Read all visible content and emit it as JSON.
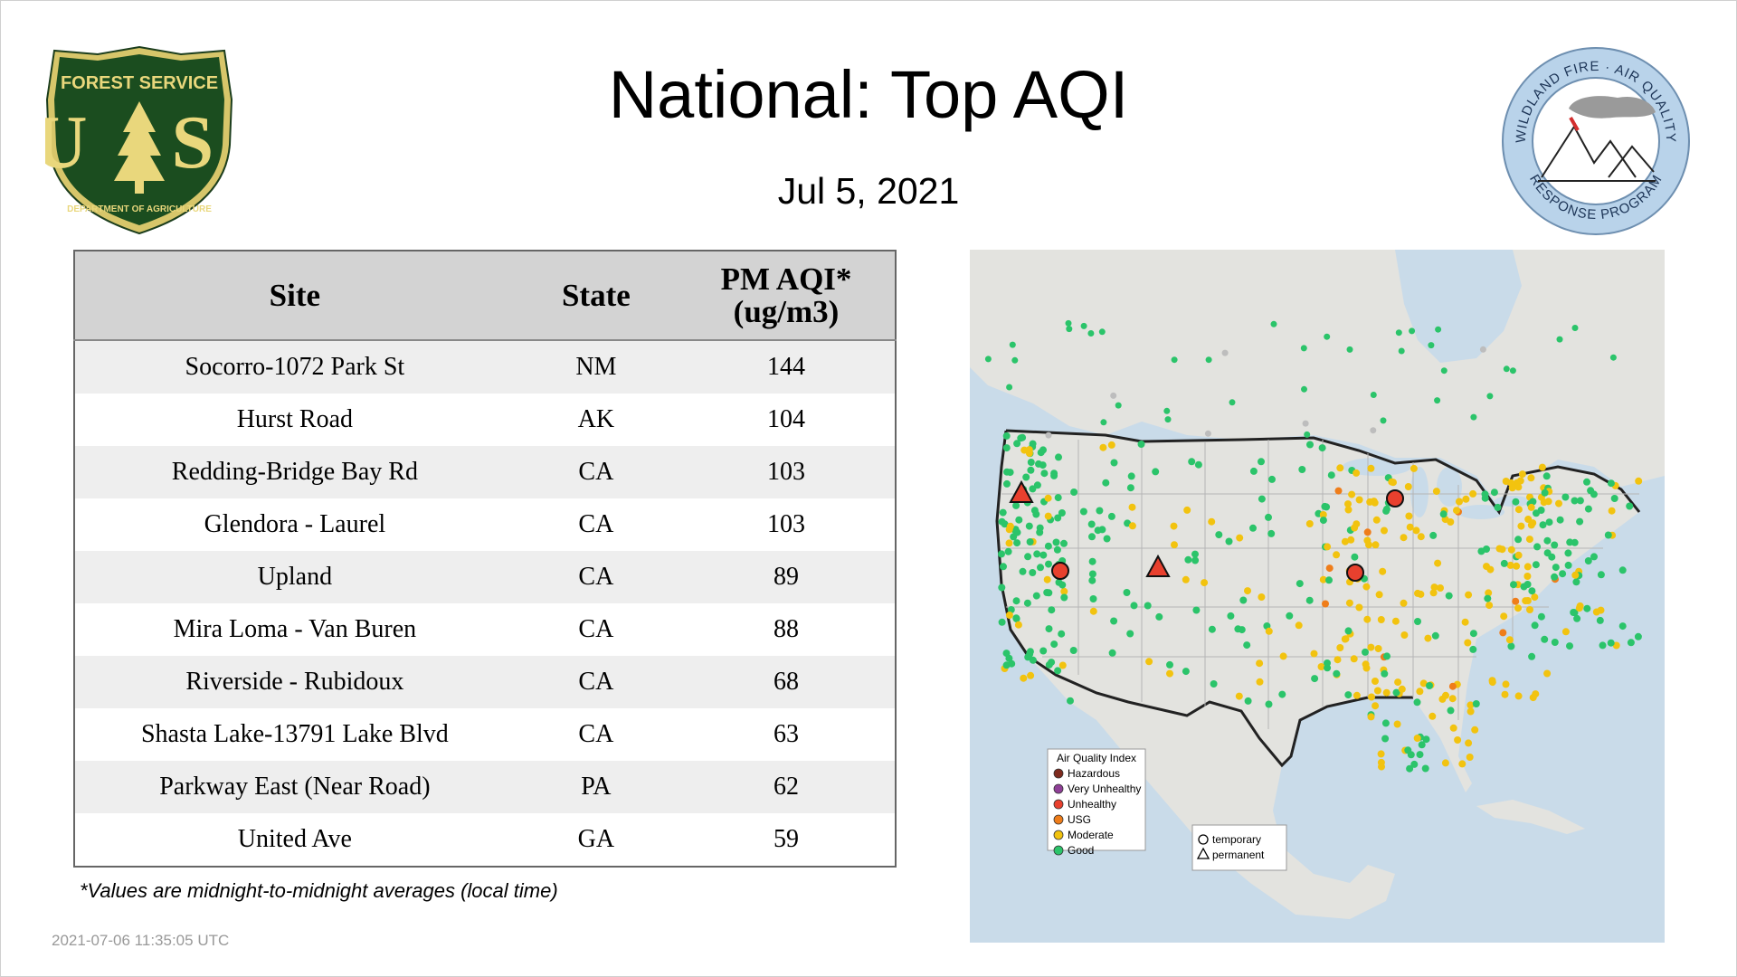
{
  "header": {
    "title": "National: Top AQI",
    "date": "Jul  5, 2021"
  },
  "logos": {
    "left": {
      "top_text": "FOREST SERVICE",
      "letters": "U S",
      "bottom_text": "DEPARTMENT OF AGRICULTURE"
    },
    "right": {
      "top_text": "WILDLAND FIRE · AIR QUALITY",
      "bottom_text": "RESPONSE PROGRAM"
    }
  },
  "table": {
    "headers": {
      "site": "Site",
      "state": "State",
      "aqi_line1": "PM AQI*",
      "aqi_line2": "(ug/m3)"
    },
    "rows": [
      {
        "site": "Socorro-1072 Park St",
        "state": "NM",
        "aqi": "144"
      },
      {
        "site": "Hurst Road",
        "state": "AK",
        "aqi": "104"
      },
      {
        "site": "Redding-Bridge Bay Rd",
        "state": "CA",
        "aqi": "103"
      },
      {
        "site": "Glendora - Laurel",
        "state": "CA",
        "aqi": "103"
      },
      {
        "site": "Upland",
        "state": "CA",
        "aqi": "89"
      },
      {
        "site": "Mira Loma - Van Buren",
        "state": "CA",
        "aqi": "88"
      },
      {
        "site": "Riverside - Rubidoux",
        "state": "CA",
        "aqi": "68"
      },
      {
        "site": "Shasta Lake-13791 Lake Blvd",
        "state": "CA",
        "aqi": "63"
      },
      {
        "site": "Parkway East (Near Road)",
        "state": "PA",
        "aqi": "62"
      },
      {
        "site": "United Ave",
        "state": "GA",
        "aqi": "59"
      }
    ]
  },
  "footnote": "*Values are midnight-to-midnight averages (local time)",
  "timestamp": "2021-07-06 11:35:05 UTC",
  "map": {
    "legend_title": "Air Quality Index",
    "legend_items": [
      {
        "label": "Hazardous",
        "color": "#7e2a1e"
      },
      {
        "label": "Very Unhealthy",
        "color": "#8f3f97"
      },
      {
        "label": "Unhealthy",
        "color": "#e8402e"
      },
      {
        "label": "USG",
        "color": "#ef7d1a"
      },
      {
        "label": "Moderate",
        "color": "#f2c30f"
      },
      {
        "label": "Good",
        "color": "#2bc46a"
      }
    ],
    "shape_items": [
      {
        "label": "temporary",
        "shape": "circle"
      },
      {
        "label": "permanent",
        "shape": "triangle"
      }
    ],
    "colors": {
      "ocean": "#c9dbe9",
      "land": "#e3e3df",
      "border": "#222222",
      "state_lines": "#b5b5b5"
    }
  }
}
